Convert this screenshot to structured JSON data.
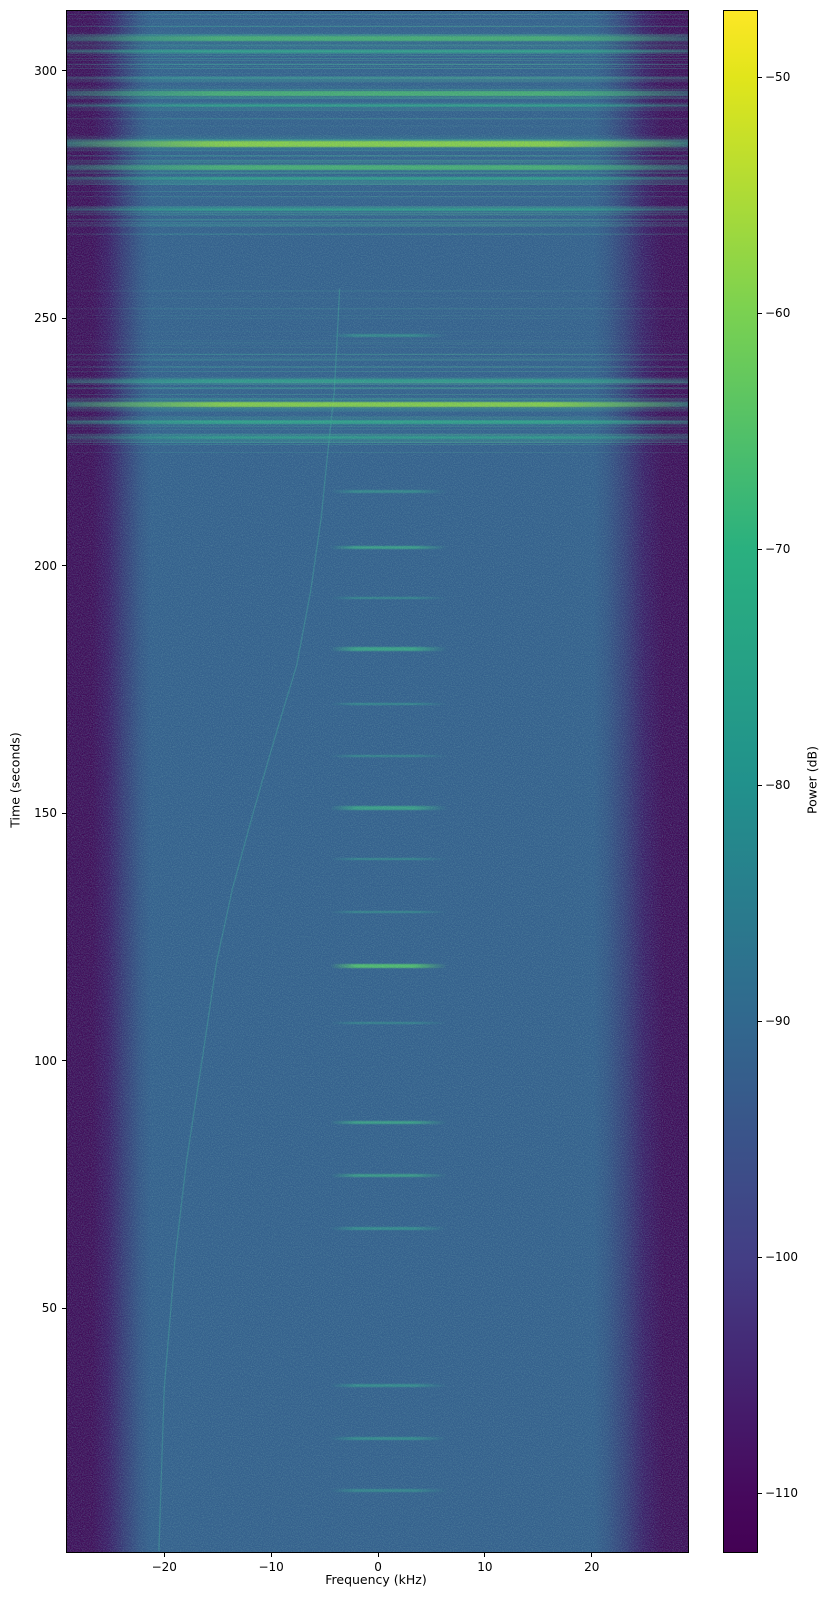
{
  "chart_data": {
    "type": "heatmap",
    "title": "",
    "xlabel": "Frequency (kHz)",
    "ylabel": "Time (seconds)",
    "colorbar_label": "Power (dB)",
    "xlim": [
      -29.1,
      29.0
    ],
    "ylim": [
      0.8,
      312.1
    ],
    "x_ticks": [
      -20,
      -10,
      0,
      10,
      20
    ],
    "x_tick_labels": [
      "−20",
      "−10",
      "0",
      "10",
      "20"
    ],
    "y_ticks": [
      50,
      100,
      150,
      200,
      250,
      300
    ],
    "y_tick_labels": [
      "50",
      "100",
      "150",
      "200",
      "250",
      "300"
    ],
    "grid": false,
    "colorbar": {
      "vmin": -112.5,
      "vmax": -47.2,
      "ticks": [
        -50,
        -60,
        -70,
        -80,
        -90,
        -100,
        -110
      ],
      "tick_labels": [
        "−50",
        "−60",
        "−70",
        "−80",
        "−90",
        "−100",
        "−110"
      ],
      "colormap": "viridis"
    },
    "background_power_db": -95,
    "band_edge_khz": 25,
    "wideband_bursts": [
      {
        "t": 306.5,
        "strength": 0.5,
        "thickness_s": 1.0
      },
      {
        "t": 304.0,
        "strength": 0.38,
        "thickness_s": 0.6
      },
      {
        "t": 295.5,
        "strength": 0.5,
        "thickness_s": 1.0
      },
      {
        "t": 293.0,
        "strength": 0.35,
        "thickness_s": 0.6
      },
      {
        "t": 285.3,
        "strength": 0.9,
        "thickness_s": 1.2
      },
      {
        "t": 280.5,
        "strength": 0.55,
        "thickness_s": 1.0
      },
      {
        "t": 278.3,
        "strength": 0.45,
        "thickness_s": 0.6
      },
      {
        "t": 272.0,
        "strength": 0.35,
        "thickness_s": 0.6
      },
      {
        "t": 237.5,
        "strength": 0.4,
        "thickness_s": 0.6
      },
      {
        "t": 232.7,
        "strength": 0.85,
        "thickness_s": 1.0
      },
      {
        "t": 229.0,
        "strength": 0.45,
        "thickness_s": 0.8
      },
      {
        "t": 226.0,
        "strength": 0.35,
        "thickness_s": 0.6
      }
    ],
    "streak_regions": [
      {
        "t_start": 267,
        "t_end": 312,
        "count": 85,
        "alpha_min": 0.04,
        "alpha_max": 0.3
      },
      {
        "t_start": 222,
        "t_end": 246,
        "count": 45,
        "alpha_min": 0.04,
        "alpha_max": 0.24
      },
      {
        "t_start": 247,
        "t_end": 258,
        "count": 8,
        "alpha_min": 0.03,
        "alpha_max": 0.1
      }
    ],
    "narrowband_pulses": {
      "f_start_khz": -4.5,
      "f_end_khz": 6.5,
      "events": [
        {
          "t": 246.6,
          "strength": 0.3
        },
        {
          "t": 215.0,
          "strength": 0.3
        },
        {
          "t": 203.8,
          "strength": 0.55
        },
        {
          "t": 193.5,
          "strength": 0.3
        },
        {
          "t": 183.2,
          "strength": 0.6
        },
        {
          "t": 172.1,
          "strength": 0.35
        },
        {
          "t": 161.6,
          "strength": 0.3
        },
        {
          "t": 151.1,
          "strength": 0.55
        },
        {
          "t": 140.8,
          "strength": 0.3
        },
        {
          "t": 130.1,
          "strength": 0.3
        },
        {
          "t": 119.2,
          "strength": 0.85
        },
        {
          "t": 107.7,
          "strength": 0.2
        },
        {
          "t": 87.5,
          "strength": 0.55
        },
        {
          "t": 76.8,
          "strength": 0.45
        },
        {
          "t": 66.1,
          "strength": 0.4
        },
        {
          "t": 34.4,
          "strength": 0.4
        },
        {
          "t": 23.7,
          "strength": 0.4
        },
        {
          "t": 13.2,
          "strength": 0.25
        }
      ]
    },
    "doppler_trace": {
      "f_khz_points": [
        [
          256,
          -3.6
        ],
        [
          245,
          -3.85
        ],
        [
          235,
          -4.1
        ],
        [
          223,
          -4.7
        ],
        [
          210,
          -5.3
        ],
        [
          195,
          -6.3
        ],
        [
          180,
          -7.6
        ],
        [
          165,
          -9.7
        ],
        [
          150,
          -11.7
        ],
        [
          135,
          -13.6
        ],
        [
          120,
          -15.1
        ],
        [
          101,
          -16.4
        ],
        [
          80,
          -17.9
        ],
        [
          60,
          -19.0
        ],
        [
          34,
          -20.0
        ],
        [
          15,
          -20.3
        ],
        [
          1,
          -20.5
        ]
      ]
    },
    "palette": {
      "background": "#33608c",
      "edge": "#440154",
      "teal": "#2fae89",
      "green": "#57c266",
      "bright": "#9ddb4d",
      "viridis_top": "#fde725",
      "viridis_bottom": "#440154"
    }
  },
  "labels": {
    "xlabel": "Frequency (kHz)",
    "ylabel": "Time (seconds)",
    "colorbar_label": "Power (dB)"
  }
}
